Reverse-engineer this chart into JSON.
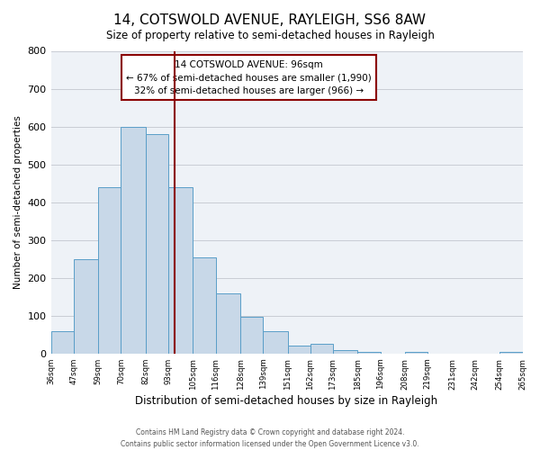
{
  "title": "14, COTSWOLD AVENUE, RAYLEIGH, SS6 8AW",
  "subtitle": "Size of property relative to semi-detached houses in Rayleigh",
  "xlabel": "Distribution of semi-detached houses by size in Rayleigh",
  "ylabel": "Number of semi-detached properties",
  "footer_line1": "Contains HM Land Registry data © Crown copyright and database right 2024.",
  "footer_line2": "Contains public sector information licensed under the Open Government Licence v3.0.",
  "bin_edges": [
    36,
    47,
    59,
    70,
    82,
    93,
    105,
    116,
    128,
    139,
    151,
    162,
    173,
    185,
    196,
    208,
    219,
    231,
    242,
    254,
    265
  ],
  "bin_labels": [
    "36sqm",
    "47sqm",
    "59sqm",
    "70sqm",
    "82sqm",
    "93sqm",
    "105sqm",
    "116sqm",
    "128sqm",
    "139sqm",
    "151sqm",
    "162sqm",
    "173sqm",
    "185sqm",
    "196sqm",
    "208sqm",
    "219sqm",
    "231sqm",
    "242sqm",
    "254sqm",
    "265sqm"
  ],
  "counts": [
    60,
    250,
    440,
    600,
    580,
    440,
    255,
    160,
    97,
    60,
    22,
    25,
    10,
    5,
    0,
    5,
    0,
    0,
    0,
    5
  ],
  "property_line_x": 96,
  "bar_color": "#c8d8e8",
  "bar_edge_color": "#5a9ec8",
  "ref_line_color": "#8b0000",
  "annotation_title": "14 COTSWOLD AVENUE: 96sqm",
  "annotation_line1": "← 67% of semi-detached houses are smaller (1,990)",
  "annotation_line2": "32% of semi-detached houses are larger (966) →",
  "ylim": [
    0,
    800
  ],
  "yticks": [
    0,
    100,
    200,
    300,
    400,
    500,
    600,
    700,
    800
  ],
  "background_color": "#eef2f7",
  "grid_color": "#c8ccd4",
  "title_fontsize": 11,
  "subtitle_fontsize": 8.5
}
